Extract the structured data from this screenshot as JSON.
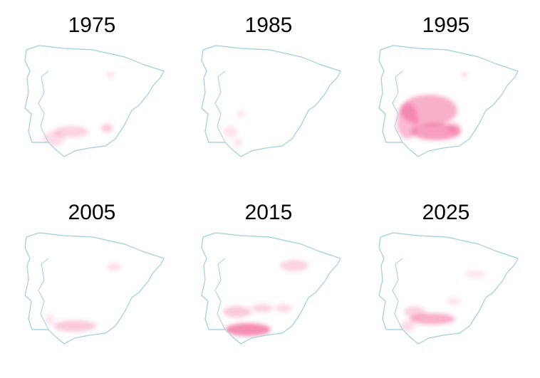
{
  "panels": [
    {
      "title": "1975"
    },
    {
      "title": "1985"
    },
    {
      "title": "1995"
    },
    {
      "title": "2005"
    },
    {
      "title": "2015"
    },
    {
      "title": "2025"
    }
  ]
}
